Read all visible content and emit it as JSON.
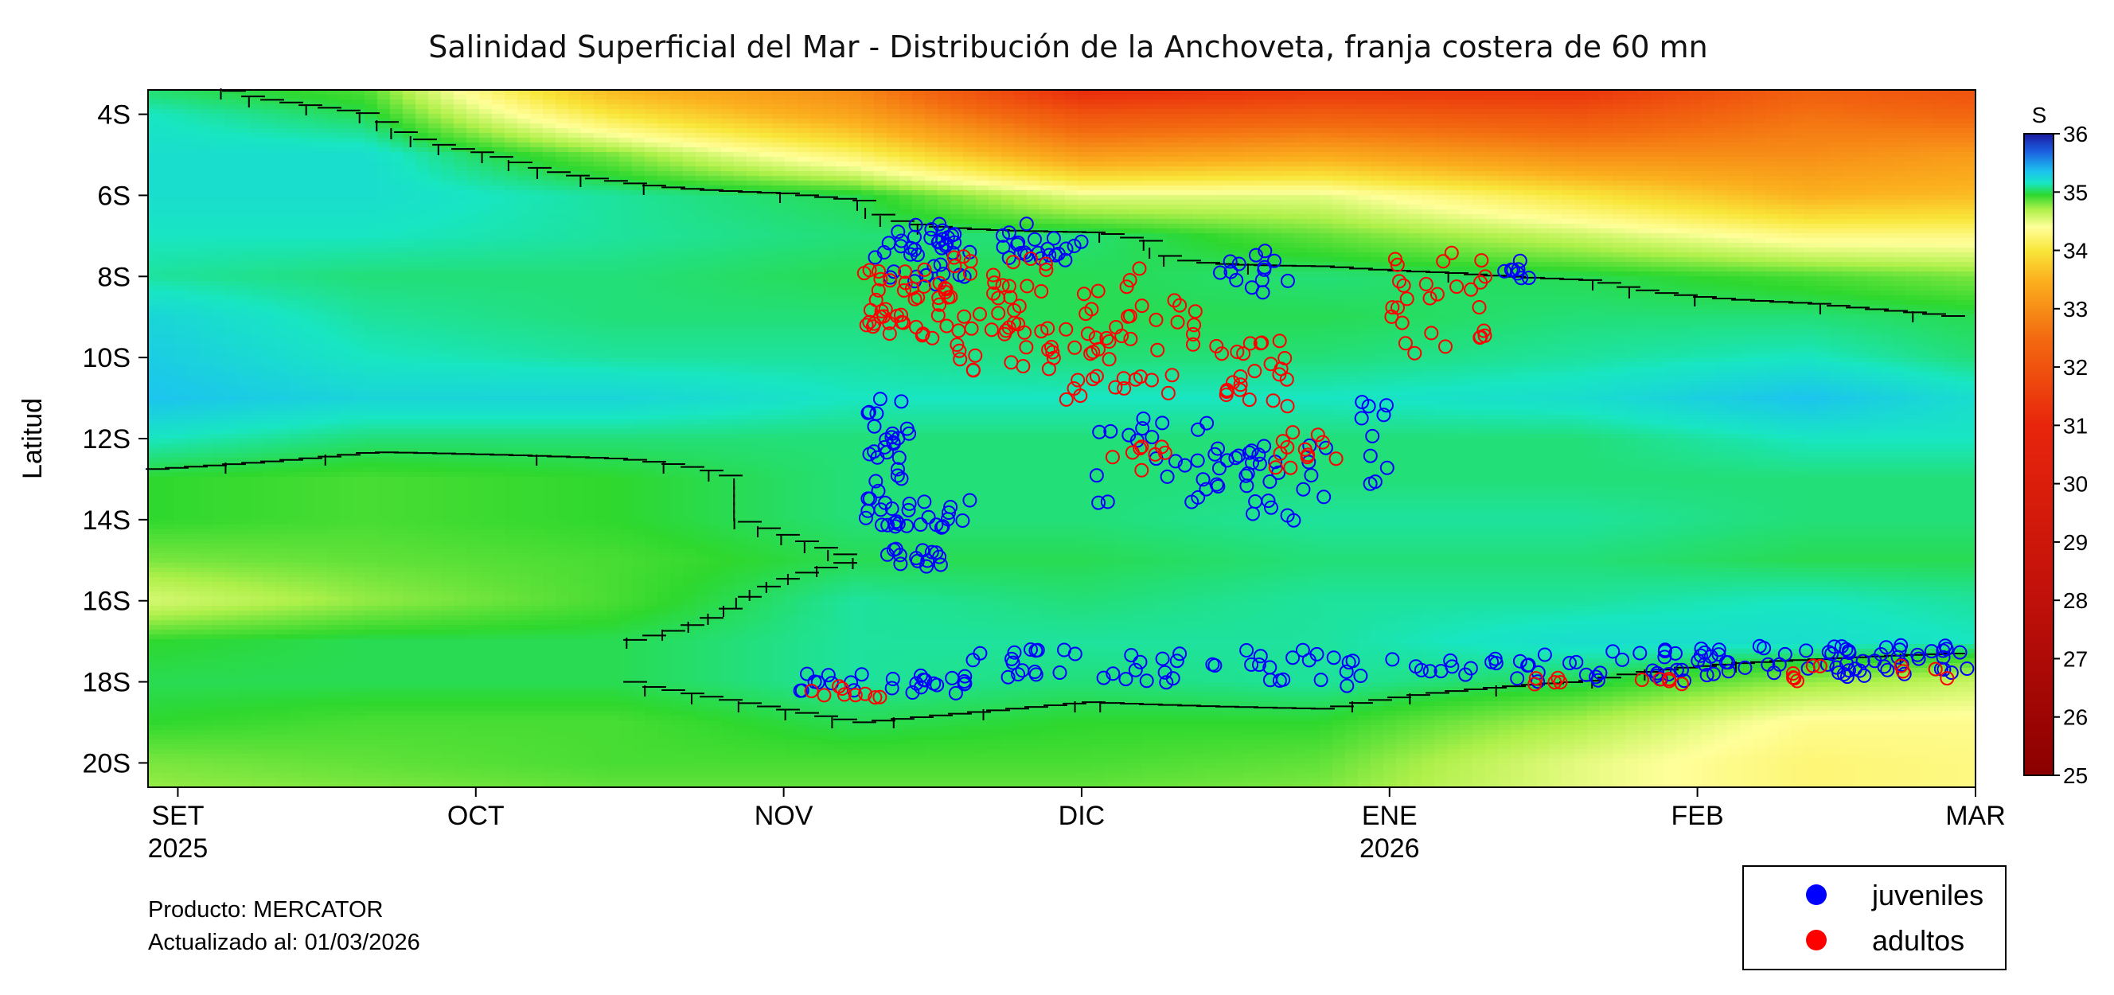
{
  "chart_data": {
    "type": "heatmap",
    "title": "Salinidad Superficial del Mar - Distribución de la Anchoveta, franja costera de 60 mn",
    "ylabel": "Latitud",
    "xlabel": "",
    "x_ticks": [
      {
        "label": "SET",
        "sub": "2025",
        "date": "2025-09-01"
      },
      {
        "label": "OCT",
        "sub": "",
        "date": "2025-10-01"
      },
      {
        "label": "NOV",
        "sub": "",
        "date": "2025-11-01"
      },
      {
        "label": "DIC",
        "sub": "",
        "date": "2025-12-01"
      },
      {
        "label": "ENE",
        "sub": "2026",
        "date": "2026-01-01"
      },
      {
        "label": "FEB",
        "sub": "",
        "date": "2026-02-01"
      },
      {
        "label": "MAR",
        "sub": "",
        "date": "2026-03-01"
      }
    ],
    "x_range": [
      "2025-08-29",
      "2026-03-01"
    ],
    "y_ticks": [
      "4S",
      "6S",
      "8S",
      "10S",
      "12S",
      "14S",
      "16S",
      "18S",
      "20S"
    ],
    "y_values": [
      4,
      6,
      8,
      10,
      12,
      14,
      16,
      18,
      20
    ],
    "y_range": [
      3.4,
      20.6
    ],
    "colorbar": {
      "label": "S",
      "min": 25,
      "max": 36,
      "ticks": [
        25,
        26,
        27,
        28,
        29,
        30,
        31,
        32,
        33,
        34,
        35,
        36
      ],
      "stops": [
        {
          "v": 25.0,
          "c": "#8b0000"
        },
        {
          "v": 28.0,
          "c": "#c0100a"
        },
        {
          "v": 31.0,
          "c": "#e8250c"
        },
        {
          "v": 32.5,
          "c": "#f36a10"
        },
        {
          "v": 33.5,
          "c": "#fbb11e"
        },
        {
          "v": 34.0,
          "c": "#f9e63a"
        },
        {
          "v": 34.4,
          "c": "#ffff9a"
        },
        {
          "v": 34.7,
          "c": "#aef04a"
        },
        {
          "v": 34.95,
          "c": "#2ed82e"
        },
        {
          "v": 35.15,
          "c": "#18e6c2"
        },
        {
          "v": 35.35,
          "c": "#1cc4ee"
        },
        {
          "v": 35.7,
          "c": "#1c5ee0"
        },
        {
          "v": 36.0,
          "c": "#1a1aa0"
        }
      ]
    },
    "field": [
      {
        "lat": 3.5,
        "values": [
          35.05,
          34.9,
          33.6,
          33.0,
          31.2,
          31.5,
          31.4,
          32.3,
          32.0
        ]
      },
      {
        "lat": 4.0,
        "values": [
          35.15,
          35.0,
          34.0,
          33.3,
          32.0,
          32.2,
          32.0,
          32.6,
          32.4
        ]
      },
      {
        "lat": 5.0,
        "values": [
          35.2,
          35.2,
          34.8,
          34.2,
          33.2,
          33.4,
          33.0,
          33.0,
          33.2
        ]
      },
      {
        "lat": 6.0,
        "values": [
          35.2,
          35.2,
          35.1,
          35.0,
          34.5,
          34.5,
          34.0,
          33.5,
          33.6
        ]
      },
      {
        "lat": 7.0,
        "values": [
          35.15,
          35.15,
          35.1,
          35.05,
          35.05,
          34.85,
          34.6,
          34.3,
          34.3
        ]
      },
      {
        "lat": 8.0,
        "values": [
          35.1,
          35.05,
          35.05,
          35.0,
          35.0,
          35.05,
          35.0,
          34.9,
          34.8
        ]
      },
      {
        "lat": 9.0,
        "values": [
          35.25,
          35.1,
          35.05,
          35.05,
          35.0,
          35.0,
          35.05,
          35.05,
          35.0
        ]
      },
      {
        "lat": 10.0,
        "values": [
          35.3,
          35.15,
          35.1,
          35.1,
          35.05,
          35.05,
          35.1,
          35.15,
          35.05
        ]
      },
      {
        "lat": 11.0,
        "values": [
          35.35,
          35.25,
          35.25,
          35.15,
          35.15,
          35.15,
          35.2,
          35.35,
          35.2
        ]
      },
      {
        "lat": 12.0,
        "values": [
          35.15,
          35.05,
          35.05,
          35.05,
          35.05,
          35.05,
          35.05,
          35.15,
          35.15
        ]
      },
      {
        "lat": 13.0,
        "values": [
          34.95,
          34.9,
          34.95,
          35.05,
          35.05,
          35.05,
          35.05,
          35.05,
          35.05
        ]
      },
      {
        "lat": 14.0,
        "values": [
          34.95,
          34.9,
          34.95,
          35.05,
          35.05,
          35.1,
          35.1,
          35.05,
          35.05
        ]
      },
      {
        "lat": 15.0,
        "values": [
          34.8,
          34.85,
          34.9,
          35.0,
          35.0,
          35.05,
          35.05,
          35.0,
          35.0
        ]
      },
      {
        "lat": 16.0,
        "values": [
          34.55,
          34.75,
          34.9,
          35.1,
          35.05,
          35.1,
          35.1,
          35.15,
          35.1
        ]
      },
      {
        "lat": 17.0,
        "values": [
          34.95,
          35.0,
          35.0,
          35.1,
          35.1,
          35.1,
          35.2,
          35.2,
          35.15
        ]
      },
      {
        "lat": 18.0,
        "values": [
          35.0,
          35.0,
          35.0,
          35.1,
          35.05,
          35.1,
          35.0,
          34.75,
          34.6
        ]
      },
      {
        "lat": 19.0,
        "values": [
          34.95,
          34.9,
          34.9,
          35.0,
          34.95,
          34.95,
          34.7,
          34.35,
          34.35
        ]
      },
      {
        "lat": 20.0,
        "values": [
          34.8,
          34.85,
          34.9,
          34.9,
          34.9,
          34.85,
          34.5,
          34.25,
          34.3
        ]
      },
      {
        "lat": 20.6,
        "values": [
          34.75,
          34.8,
          34.85,
          34.85,
          34.85,
          34.8,
          34.5,
          34.25,
          34.3
        ]
      }
    ],
    "field_dates": [
      "2025-08-29",
      "2025-09-20",
      "2025-10-15",
      "2025-11-08",
      "2025-12-01",
      "2025-12-25",
      "2026-01-20",
      "2026-02-12",
      "2026-03-01"
    ],
    "series": [
      {
        "name": "juveniles",
        "color": "#0000ff",
        "clusters": [
          {
            "d0": "2025-11-10",
            "d1": "2025-11-20",
            "lat0": 6.7,
            "lat1": 8.2,
            "n": 40
          },
          {
            "d0": "2025-11-23",
            "d1": "2025-12-01",
            "lat0": 6.7,
            "lat1": 7.6,
            "n": 22
          },
          {
            "d0": "2025-12-14",
            "d1": "2025-12-22",
            "lat0": 7.2,
            "lat1": 8.5,
            "n": 14
          },
          {
            "d0": "2025-11-09",
            "d1": "2025-11-14",
            "lat0": 11.0,
            "lat1": 13.8,
            "n": 30
          },
          {
            "d0": "2025-11-09",
            "d1": "2025-11-20",
            "lat0": 13.5,
            "lat1": 14.2,
            "n": 22
          },
          {
            "d0": "2025-11-11",
            "d1": "2025-11-18",
            "lat0": 14.7,
            "lat1": 15.2,
            "n": 14
          },
          {
            "d0": "2025-12-02",
            "d1": "2025-12-18",
            "lat0": 11.5,
            "lat1": 13.6,
            "n": 34
          },
          {
            "d0": "2025-12-18",
            "d1": "2025-12-27",
            "lat0": 12.0,
            "lat1": 14.2,
            "n": 20
          },
          {
            "d0": "2025-12-29",
            "d1": "2026-01-01",
            "lat0": 11.0,
            "lat1": 13.2,
            "n": 10
          },
          {
            "d0": "2026-01-12",
            "d1": "2026-01-16",
            "lat0": 7.6,
            "lat1": 8.1,
            "n": 8
          },
          {
            "d0": "2025-10-31",
            "d1": "2025-11-20",
            "lat0": 17.8,
            "lat1": 18.3,
            "n": 26
          },
          {
            "d0": "2025-11-20",
            "d1": "2025-12-01",
            "lat0": 17.2,
            "lat1": 17.9,
            "n": 16
          },
          {
            "d0": "2025-12-01",
            "d1": "2025-12-31",
            "lat0": 17.2,
            "lat1": 18.1,
            "n": 34
          },
          {
            "d0": "2026-01-01",
            "d1": "2026-01-31",
            "lat0": 17.2,
            "lat1": 18.0,
            "n": 40
          },
          {
            "d0": "2026-02-01",
            "d1": "2026-03-01",
            "lat0": 17.1,
            "lat1": 17.9,
            "n": 62
          }
        ]
      },
      {
        "name": "adultos",
        "color": "#ff0000",
        "clusters": [
          {
            "d0": "2025-11-09",
            "d1": "2025-11-18",
            "lat0": 7.8,
            "lat1": 9.6,
            "n": 44
          },
          {
            "d0": "2025-11-18",
            "d1": "2025-11-28",
            "lat0": 7.4,
            "lat1": 10.4,
            "n": 46
          },
          {
            "d0": "2025-11-28",
            "d1": "2025-12-05",
            "lat0": 8.2,
            "lat1": 11.2,
            "n": 24
          },
          {
            "d0": "2025-12-05",
            "d1": "2025-12-13",
            "lat0": 7.8,
            "lat1": 11.0,
            "n": 24
          },
          {
            "d0": "2025-12-13",
            "d1": "2025-12-22",
            "lat0": 9.5,
            "lat1": 11.3,
            "n": 24
          },
          {
            "d0": "2026-01-01",
            "d1": "2026-01-11",
            "lat0": 7.4,
            "lat1": 10.0,
            "n": 28
          },
          {
            "d0": "2025-12-20",
            "d1": "2025-12-27",
            "lat0": 11.8,
            "lat1": 12.8,
            "n": 12
          },
          {
            "d0": "2025-12-02",
            "d1": "2025-12-10",
            "lat0": 12.2,
            "lat1": 12.8,
            "n": 8
          },
          {
            "d0": "2025-11-02",
            "d1": "2025-11-12",
            "lat0": 18.1,
            "lat1": 18.4,
            "n": 9
          },
          {
            "d0": "2026-01-15",
            "d1": "2026-02-01",
            "lat0": 17.9,
            "lat1": 18.1,
            "n": 10
          },
          {
            "d0": "2026-02-10",
            "d1": "2026-02-28",
            "lat0": 17.6,
            "lat1": 18.0,
            "n": 10
          }
        ]
      }
    ],
    "legend": {
      "placement": "bottom-right",
      "entries": [
        "juveniles",
        "adultos"
      ]
    }
  },
  "notes": {
    "product": "Producto: MERCATOR",
    "updated": "Actualizado al: 01/03/2026"
  }
}
